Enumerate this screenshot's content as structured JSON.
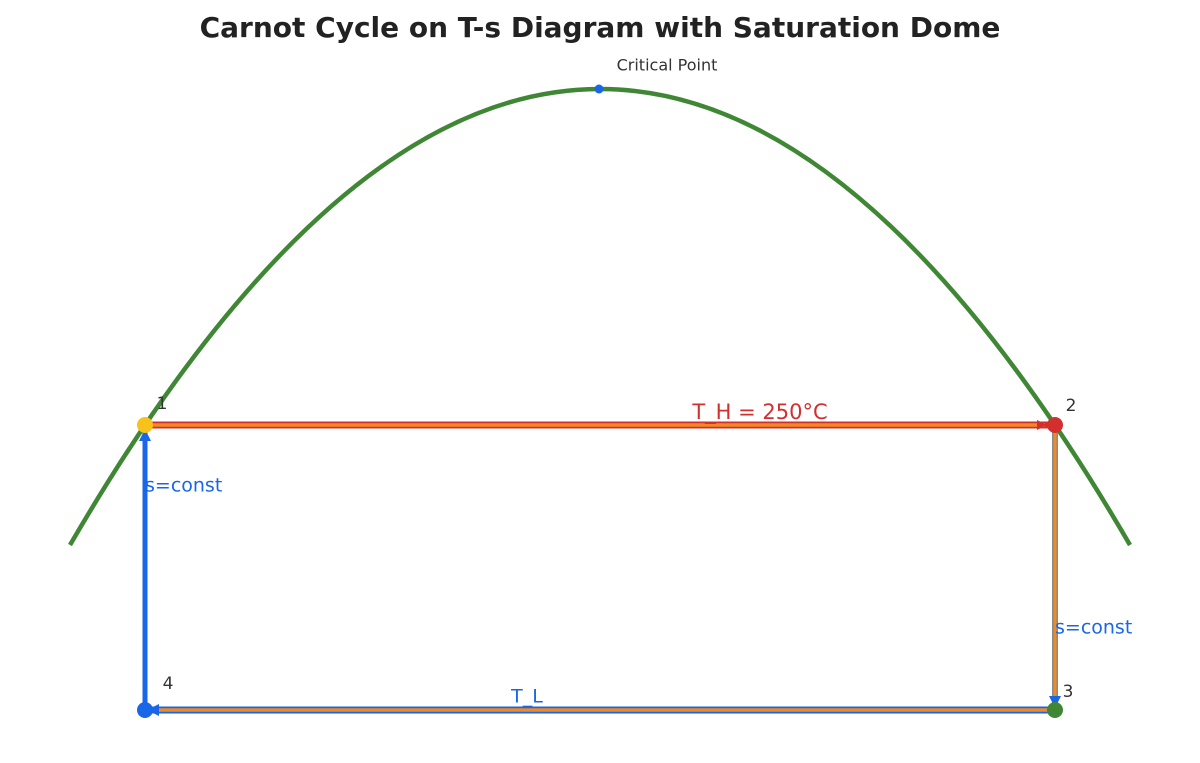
{
  "title": "Carnot Cycle on T-s Diagram with Saturation Dome",
  "critical_point": {
    "label": "Critical Point"
  },
  "states": [
    {
      "label": "1"
    },
    {
      "label": "2"
    },
    {
      "label": "3"
    },
    {
      "label": "4"
    }
  ],
  "processes": [
    {
      "label": "T_H = 250°C"
    },
    {
      "label": "s=const"
    },
    {
      "label": "T_L"
    },
    {
      "label": "s=const"
    }
  ]
}
